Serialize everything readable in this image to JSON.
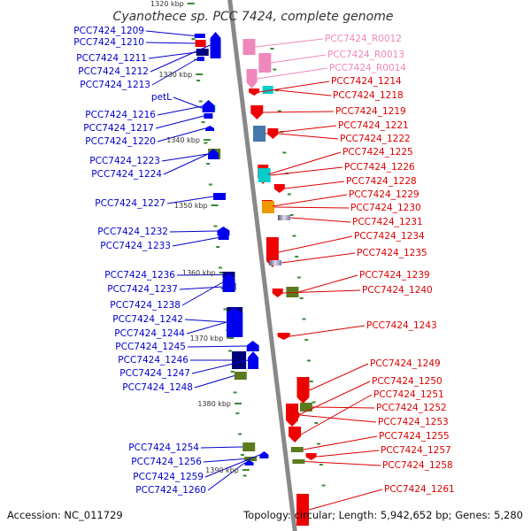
{
  "title": "Cyanothece sp. PCC 7424, complete genome",
  "accession": "Accession: NC_011729",
  "summary": "Topology: circular; Length: 5,942,652 bp; Genes: 5,280",
  "colors": {
    "backbone": "#888888",
    "minus_label": "#0000cc",
    "plus_label": "#dd0000",
    "rna_label": "#ee88bb",
    "tick": "#3a8a3a"
  },
  "scale_marks": [
    {
      "label": "1320 kbp",
      "kbp": 1320
    },
    {
      "label": "1330 kbp",
      "kbp": 1330
    },
    {
      "label": "1340 kbp",
      "kbp": 1340
    },
    {
      "label": "1350 kbp",
      "kbp": 1350
    },
    {
      "label": "1360 kbp",
      "kbp": 1360
    },
    {
      "label": "1370 kbp",
      "kbp": 1370
    },
    {
      "label": "1380 kbp",
      "kbp": 1380
    },
    {
      "label": "1390 kbp",
      "kbp": 1390
    }
  ],
  "minus_genes": [
    {
      "label": "PCC7424_1209",
      "strand": "minus",
      "color": "blue"
    },
    {
      "label": "PCC7424_1210",
      "strand": "minus",
      "color": "red"
    },
    {
      "label": "PCC7424_1211",
      "strand": "minus",
      "color": "navy"
    },
    {
      "label": "PCC7424_1212",
      "strand": "minus",
      "color": "blue"
    },
    {
      "label": "PCC7424_1213",
      "strand": "minus",
      "color": "blue"
    },
    {
      "label": "petL",
      "strand": "minus",
      "color": "cyan"
    },
    {
      "label": "PCC7424_1216",
      "strand": "minus",
      "color": "blue"
    },
    {
      "label": "PCC7424_1217",
      "strand": "minus",
      "color": "blue"
    },
    {
      "label": "PCC7424_1220",
      "strand": "minus",
      "color": "blue"
    },
    {
      "label": "PCC7424_1223",
      "strand": "minus",
      "color": "olive"
    },
    {
      "label": "PCC7424_1224",
      "strand": "minus",
      "color": "blue"
    },
    {
      "label": "PCC7424_1227",
      "strand": "minus",
      "color": "blue"
    },
    {
      "label": "PCC7424_1232",
      "strand": "minus",
      "color": "blue"
    },
    {
      "label": "PCC7424_1233",
      "strand": "minus",
      "color": "blue"
    },
    {
      "label": "PCC7424_1236",
      "strand": "minus",
      "color": "navy"
    },
    {
      "label": "PCC7424_1237",
      "strand": "minus",
      "color": "gradient"
    },
    {
      "label": "PCC7424_1238",
      "strand": "minus",
      "color": "blue"
    },
    {
      "label": "PCC7424_1242",
      "strand": "minus",
      "color": "navy"
    },
    {
      "label": "PCC7424_1244",
      "strand": "minus",
      "color": "blue"
    },
    {
      "label": "PCC7424_1245",
      "strand": "minus",
      "color": "blue"
    },
    {
      "label": "PCC7424_1246",
      "strand": "minus",
      "color": "navy"
    },
    {
      "label": "PCC7424_1247",
      "strand": "minus",
      "color": "blue"
    },
    {
      "label": "PCC7424_1248",
      "strand": "minus",
      "color": "olive"
    },
    {
      "label": "PCC7424_1254",
      "strand": "minus",
      "color": "olive"
    },
    {
      "label": "PCC7424_1256",
      "strand": "minus",
      "color": "olive"
    },
    {
      "label": "PCC7424_1259",
      "strand": "minus",
      "color": "blue"
    },
    {
      "label": "PCC7424_1260",
      "strand": "minus",
      "color": "blue"
    }
  ],
  "plus_genes": [
    {
      "label": "PCC7424_R0012",
      "strand": "plus",
      "color": "pink",
      "kind": "rna"
    },
    {
      "label": "PCC7424_R0013",
      "strand": "plus",
      "color": "pink",
      "kind": "rna"
    },
    {
      "label": "PCC7424_R0014",
      "strand": "plus",
      "color": "pink",
      "kind": "rna"
    },
    {
      "label": "PCC7424_1214",
      "strand": "plus",
      "color": "red"
    },
    {
      "label": "PCC7424_1218",
      "strand": "plus",
      "color": "cyan"
    },
    {
      "label": "PCC7424_1219",
      "strand": "plus",
      "color": "red"
    },
    {
      "label": "PCC7424_1221",
      "strand": "plus",
      "color": "steel"
    },
    {
      "label": "PCC7424_1222",
      "strand": "plus",
      "color": "red"
    },
    {
      "label": "PCC7424_1225",
      "strand": "plus",
      "color": "red"
    },
    {
      "label": "PCC7424_1226",
      "strand": "plus",
      "color": "cyan"
    },
    {
      "label": "PCC7424_1228",
      "strand": "plus",
      "color": "red"
    },
    {
      "label": "PCC7424_1229",
      "strand": "plus",
      "color": "red"
    },
    {
      "label": "PCC7424_1230",
      "strand": "plus",
      "color": "orange"
    },
    {
      "label": "PCC7424_1231",
      "strand": "plus",
      "color": "gradient"
    },
    {
      "label": "PCC7424_1234",
      "strand": "plus",
      "color": "red"
    },
    {
      "label": "PCC7424_1235",
      "strand": "plus",
      "color": "gradient"
    },
    {
      "label": "PCC7424_1239",
      "strand": "plus",
      "color": "olive"
    },
    {
      "label": "PCC7424_1240",
      "strand": "plus",
      "color": "red"
    },
    {
      "label": "PCC7424_1243",
      "strand": "plus",
      "color": "red"
    },
    {
      "label": "PCC7424_1249",
      "strand": "plus",
      "color": "red"
    },
    {
      "label": "PCC7424_1250",
      "strand": "plus",
      "color": "red"
    },
    {
      "label": "PCC7424_1251",
      "strand": "plus",
      "color": "red"
    },
    {
      "label": "PCC7424_1252",
      "strand": "plus",
      "color": "olive"
    },
    {
      "label": "PCC7424_1253",
      "strand": "plus",
      "color": "red"
    },
    {
      "label": "PCC7424_1255",
      "strand": "plus",
      "color": "olive"
    },
    {
      "label": "PCC7424_1257",
      "strand": "plus",
      "color": "red"
    },
    {
      "label": "PCC7424_1258",
      "strand": "plus",
      "color": "olive"
    },
    {
      "label": "PCC7424_1261",
      "strand": "plus",
      "color": "red"
    }
  ]
}
